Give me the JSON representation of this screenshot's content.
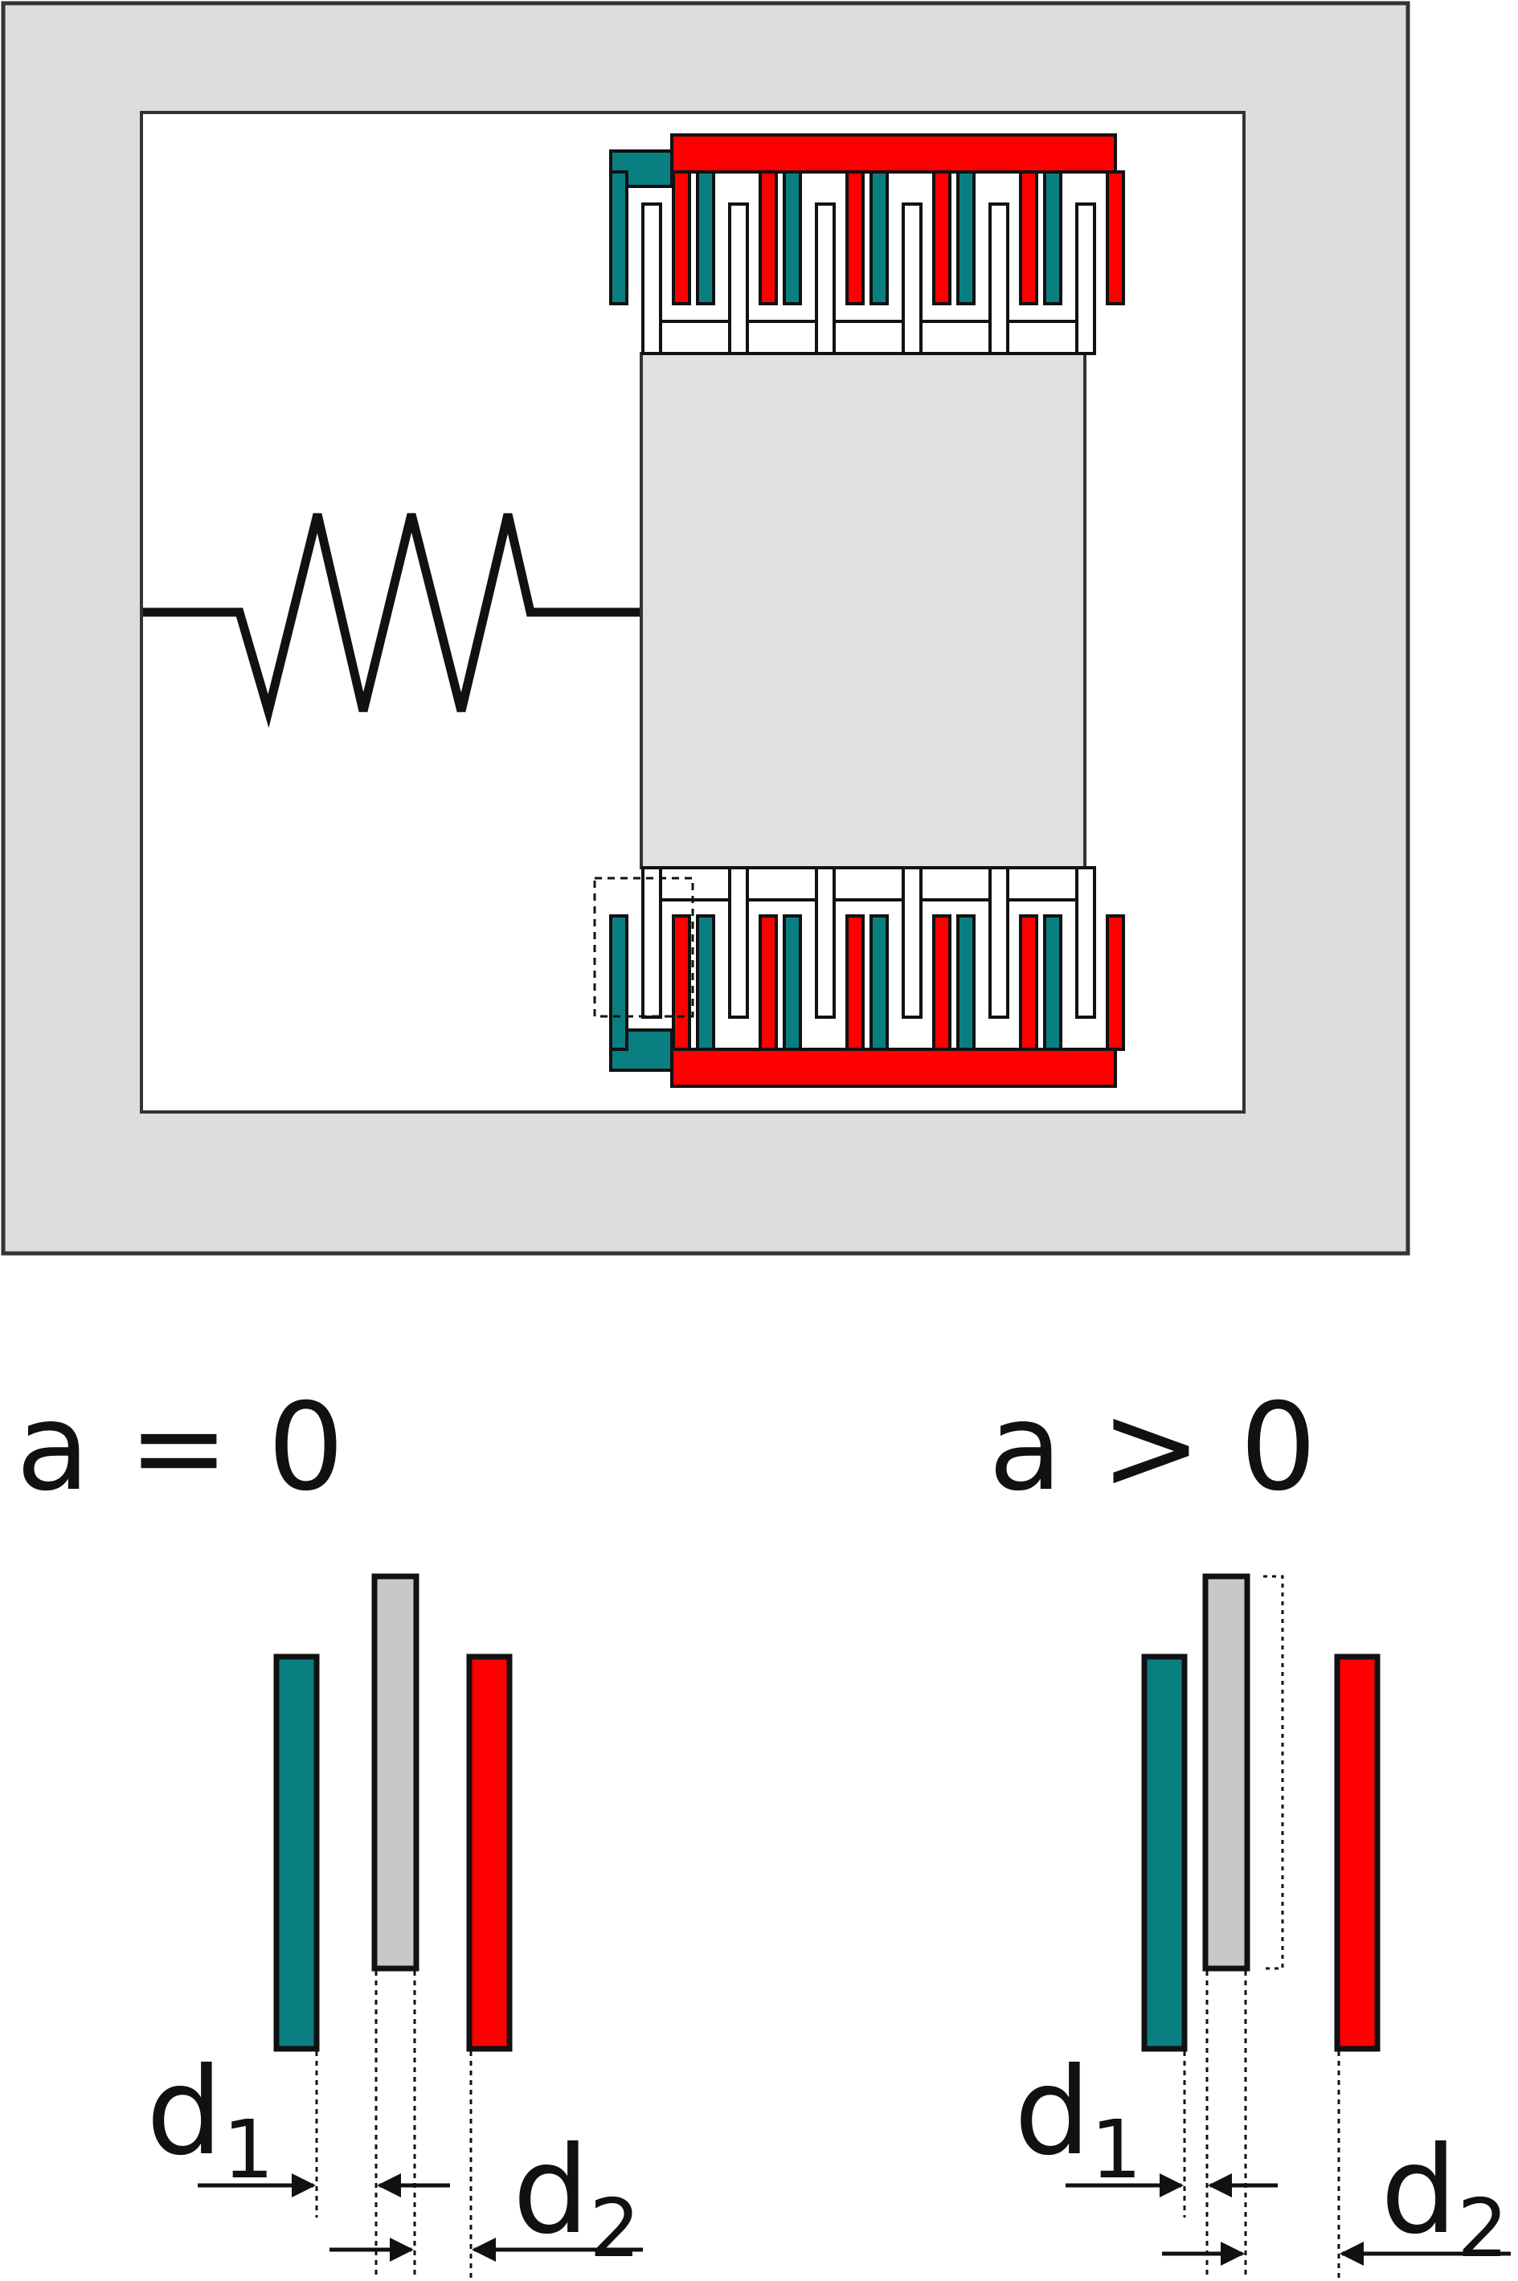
{
  "colors": {
    "frame": "#dddddd",
    "stator_left": "#0a7f82",
    "stator_right": "#ff0000",
    "proof_mass": "#e0e0e0",
    "finger_gray": "#c8c8c8",
    "outline": "#111111"
  },
  "labels": {
    "state_zero": "a = 0",
    "state_positive": "a > 0",
    "gap1_symbol": "d",
    "gap1_subscript": "1",
    "gap2_symbol": "d",
    "gap2_subscript": "2"
  },
  "icons": {
    "spring": "spring-icon",
    "arrow": "arrow-icon"
  }
}
